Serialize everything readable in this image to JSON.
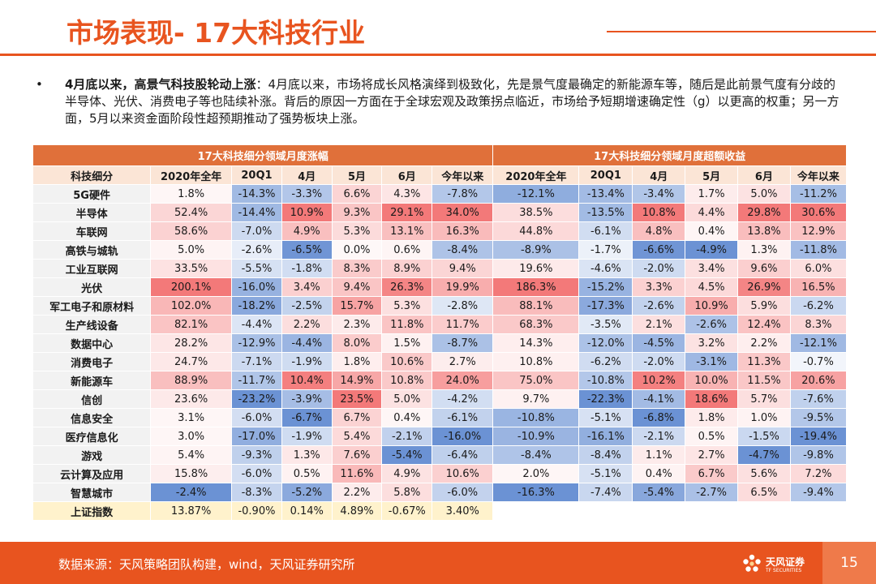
{
  "title": "市场表现- 17大科技行业",
  "bullet": {
    "marker": "•",
    "bold": "4月底以来，高景气科技股轮动上涨",
    "text": "：4月底以来，市场将成长风格演绎到极致化，先是景气度最确定的新能源车等，随后是此前景气度有分歧的半导体、光伏、消费电子等也陆续补涨。背后的原因一方面在于全球宏观及政策拐点临近，市场给予短期增速确定性（g）以更高的权重；另一方面，5月以来资金面阶段性超预期推动了强势板块上涨。"
  },
  "table": {
    "group_left": "17大科技细分领域月度涨幅",
    "group_right": "17大科技细分领域月度超额收益",
    "headers": [
      "科技细分",
      "2020年全年",
      "20Q1",
      "4月",
      "5月",
      "6月",
      "今年以来",
      "2020年全年",
      "20Q1",
      "4月",
      "5月",
      "6月",
      "今年以来"
    ],
    "rows": [
      {
        "name": "5G硬件",
        "vals": [
          "1.8%",
          "-14.3%",
          "-3.3%",
          "6.6%",
          "4.3%",
          "-7.8%",
          "-12.1%",
          "-13.4%",
          "-3.4%",
          "1.7%",
          "5.0%",
          "-11.2%"
        ]
      },
      {
        "name": "半导体",
        "vals": [
          "52.4%",
          "-14.4%",
          "10.9%",
          "9.3%",
          "29.1%",
          "34.0%",
          "38.5%",
          "-13.5%",
          "10.8%",
          "4.4%",
          "29.8%",
          "30.6%"
        ]
      },
      {
        "name": "车联网",
        "vals": [
          "58.6%",
          "-7.0%",
          "4.9%",
          "5.3%",
          "13.1%",
          "16.3%",
          "44.8%",
          "-6.1%",
          "4.8%",
          "0.4%",
          "13.8%",
          "12.9%"
        ]
      },
      {
        "name": "高铁与城轨",
        "vals": [
          "5.0%",
          "-2.6%",
          "-6.5%",
          "0.0%",
          "0.6%",
          "-8.4%",
          "-8.9%",
          "-1.7%",
          "-6.6%",
          "-4.9%",
          "1.3%",
          "-11.8%"
        ]
      },
      {
        "name": "工业互联网",
        "vals": [
          "33.5%",
          "-5.5%",
          "-1.8%",
          "8.3%",
          "8.9%",
          "9.4%",
          "19.6%",
          "-4.6%",
          "-2.0%",
          "3.4%",
          "9.6%",
          "6.0%"
        ]
      },
      {
        "name": "光伏",
        "vals": [
          "200.1%",
          "-16.0%",
          "3.4%",
          "9.4%",
          "26.3%",
          "19.9%",
          "186.3%",
          "-15.2%",
          "3.3%",
          "4.5%",
          "26.9%",
          "16.5%"
        ]
      },
      {
        "name": "军工电子和原材料",
        "vals": [
          "102.0%",
          "-18.2%",
          "-2.5%",
          "15.7%",
          "5.3%",
          "-2.8%",
          "88.1%",
          "-17.3%",
          "-2.6%",
          "10.9%",
          "5.9%",
          "-6.2%"
        ]
      },
      {
        "name": "生产线设备",
        "vals": [
          "82.1%",
          "-4.4%",
          "2.2%",
          "2.3%",
          "11.8%",
          "11.7%",
          "68.3%",
          "-3.5%",
          "2.1%",
          "-2.6%",
          "12.4%",
          "8.3%"
        ]
      },
      {
        "name": "数据中心",
        "vals": [
          "28.2%",
          "-12.9%",
          "-4.4%",
          "8.0%",
          "1.5%",
          "-8.7%",
          "14.3%",
          "-12.0%",
          "-4.5%",
          "3.2%",
          "2.2%",
          "-12.1%"
        ]
      },
      {
        "name": "消费电子",
        "vals": [
          "24.7%",
          "-7.1%",
          "-1.9%",
          "1.8%",
          "10.6%",
          "2.7%",
          "10.8%",
          "-6.2%",
          "-2.0%",
          "-3.1%",
          "11.3%",
          "-0.7%"
        ]
      },
      {
        "name": "新能源车",
        "vals": [
          "88.9%",
          "-11.7%",
          "10.4%",
          "14.9%",
          "10.8%",
          "24.0%",
          "75.0%",
          "-10.8%",
          "10.2%",
          "10.0%",
          "11.5%",
          "20.6%"
        ]
      },
      {
        "name": "信创",
        "vals": [
          "23.6%",
          "-23.2%",
          "-3.9%",
          "23.5%",
          "5.0%",
          "-4.2%",
          "9.7%",
          "-22.3%",
          "-4.1%",
          "18.6%",
          "5.7%",
          "-7.6%"
        ]
      },
      {
        "name": "信息安全",
        "vals": [
          "3.1%",
          "-6.0%",
          "-6.7%",
          "6.7%",
          "0.4%",
          "-6.1%",
          "-10.8%",
          "-5.1%",
          "-6.8%",
          "1.8%",
          "1.0%",
          "-9.5%"
        ]
      },
      {
        "name": "医疗信息化",
        "vals": [
          "3.0%",
          "-17.0%",
          "-1.9%",
          "5.4%",
          "-2.1%",
          "-16.0%",
          "-10.9%",
          "-16.1%",
          "-2.1%",
          "0.5%",
          "-1.5%",
          "-19.4%"
        ]
      },
      {
        "name": "游戏",
        "vals": [
          "5.4%",
          "-9.3%",
          "1.3%",
          "7.6%",
          "-5.4%",
          "-6.4%",
          "-8.4%",
          "-8.4%",
          "1.1%",
          "2.7%",
          "-4.7%",
          "-9.8%"
        ]
      },
      {
        "name": "云计算及应用",
        "vals": [
          "15.8%",
          "-6.0%",
          "0.5%",
          "11.6%",
          "4.9%",
          "10.6%",
          "2.0%",
          "-5.1%",
          "0.4%",
          "6.7%",
          "5.6%",
          "7.2%"
        ]
      },
      {
        "name": "智慧城市",
        "vals": [
          "-2.4%",
          "-8.3%",
          "-5.2%",
          "2.2%",
          "5.8%",
          "-6.0%",
          "-16.3%",
          "-7.4%",
          "-5.4%",
          "-2.7%",
          "6.5%",
          "-9.4%"
        ]
      }
    ],
    "index_row": {
      "name": "上证指数",
      "vals": [
        "13.87%",
        "-0.90%",
        "0.14%",
        "4.89%",
        "-0.67%",
        "3.40%"
      ]
    }
  },
  "colors": {
    "accent": "#e8541f",
    "group_header": "#e0703a",
    "col_header": "#fbe5d6",
    "heat_high": "#f26a6a",
    "heat_mid": "#ffffff",
    "heat_low": "#5b86cf"
  },
  "footer": {
    "source": "数据来源：天风策略团队构建，wind，天风证券研究所",
    "logo_cn": "天风证券",
    "logo_en": "TF SECURITIES",
    "page": "15"
  }
}
